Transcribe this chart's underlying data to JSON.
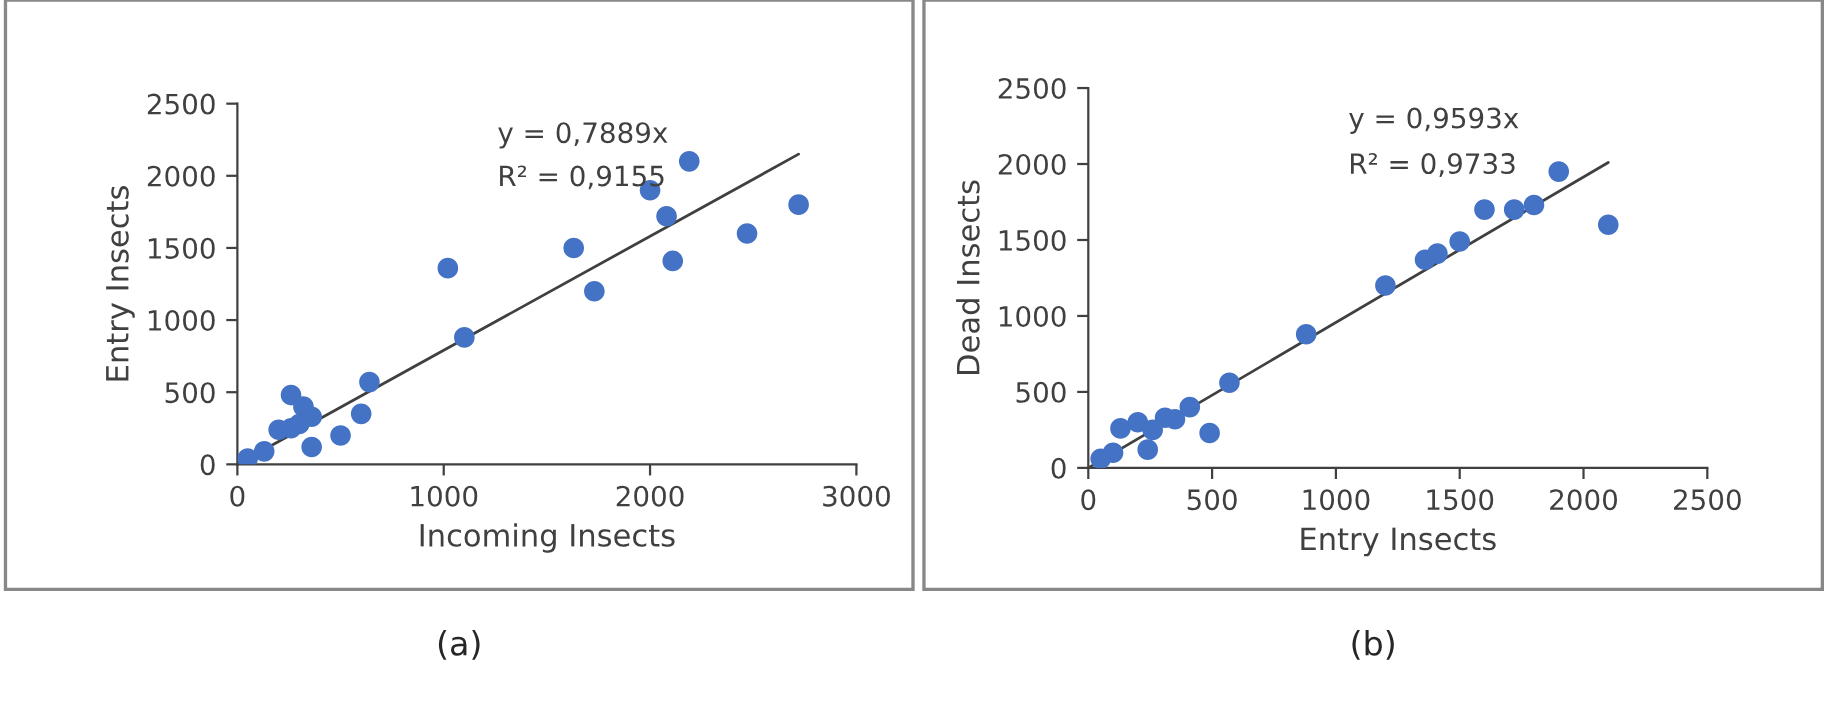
{
  "chart_data": [
    {
      "type": "scatter",
      "xlabel": "Incoming Insects",
      "ylabel": "Entry Insects",
      "xlim": [
        0,
        3000
      ],
      "ylim": [
        0,
        2500
      ],
      "xticks": [
        0,
        1000,
        2000,
        3000
      ],
      "yticks": [
        0,
        500,
        1000,
        1500,
        2000,
        2500
      ],
      "grid": false,
      "legend": false,
      "marker": "circle",
      "annotations": [
        "y = 0,7889x",
        "R² = 0,9155",
        "(a)"
      ],
      "series": [
        {
          "color": "#4472c4",
          "x": [
            2190,
            2000,
            2080,
            2110,
            2470,
            2720,
            1630,
            1730,
            1020,
            1100,
            640,
            600,
            500,
            360,
            260,
            320,
            360,
            300,
            200,
            260,
            130,
            50
          ],
          "values": [
            2100,
            1900,
            1720,
            1410,
            1600,
            1800,
            1500,
            1200,
            1360,
            880,
            570,
            350,
            200,
            120,
            480,
            400,
            330,
            280,
            240,
            250,
            90,
            40
          ]
        },
        {
          "type": "line",
          "color": "#404040",
          "marker": "none",
          "x": [
            0,
            2720
          ],
          "values": [
            0,
            2150
          ]
        }
      ]
    },
    {
      "type": "scatter",
      "xlabel": "Entry Insects",
      "ylabel": "Dead Insects",
      "xlim": [
        0,
        2500
      ],
      "ylim": [
        0,
        2500
      ],
      "xticks": [
        0,
        500,
        1000,
        1500,
        2000,
        2500
      ],
      "yticks": [
        0,
        500,
        1000,
        1500,
        2000,
        2500
      ],
      "grid": false,
      "legend": false,
      "marker": "circle",
      "annotations": [
        "y = 0,9593x",
        "R² = 0,9733",
        "(b)"
      ],
      "series": [
        {
          "color": "#4472c4",
          "x": [
            1900,
            2100,
            1600,
            1720,
            1800,
            1500,
            1360,
            1410,
            1200,
            880,
            570,
            490,
            410,
            350,
            310,
            240,
            200,
            130,
            260,
            100,
            50
          ],
          "values": [
            1950,
            1600,
            1700,
            1700,
            1730,
            1490,
            1370,
            1410,
            1200,
            880,
            560,
            230,
            400,
            320,
            330,
            120,
            300,
            260,
            250,
            100,
            60
          ]
        },
        {
          "type": "line",
          "color": "#404040",
          "marker": "none",
          "x": [
            0,
            2100
          ],
          "values": [
            0,
            2010
          ]
        }
      ]
    }
  ]
}
